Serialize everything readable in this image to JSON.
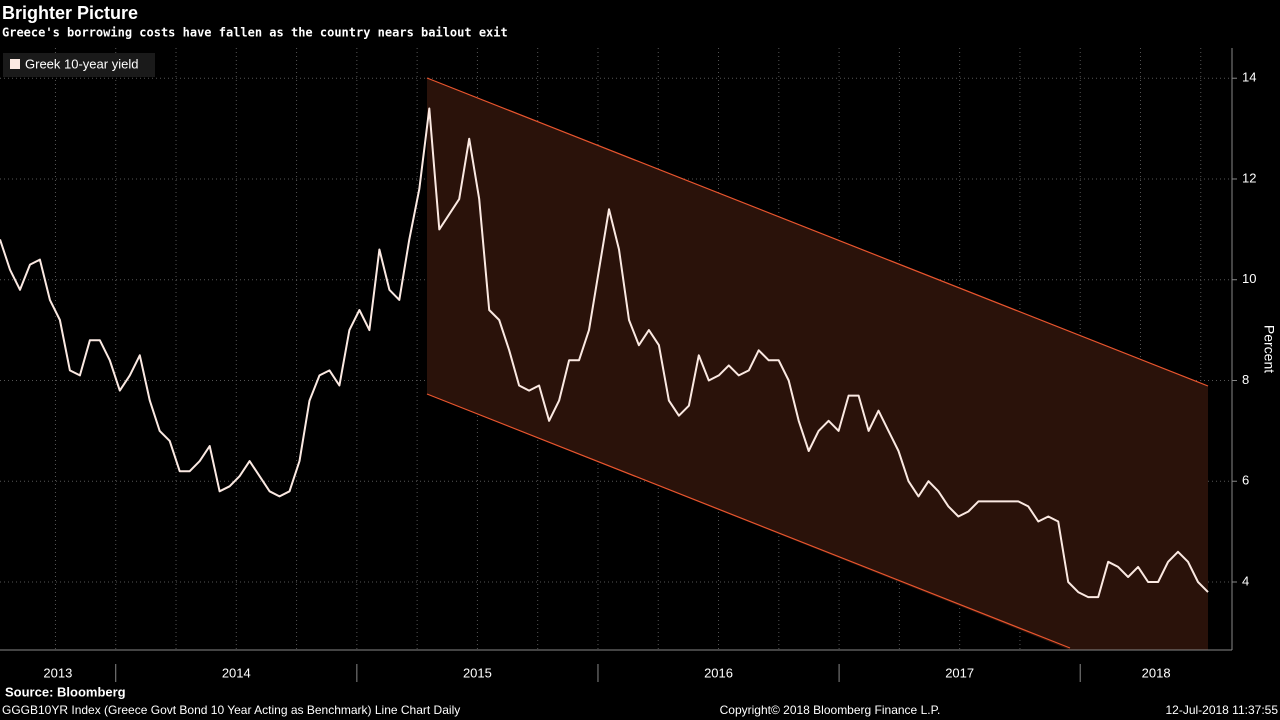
{
  "chart_data": {
    "type": "line",
    "title": "Brighter Picture",
    "subtitle": "Greece's borrowing costs have fallen as the country nears bailout exit",
    "y_label": "Percent",
    "source": "Source: Bloomberg",
    "footer_left": "GGGB10YR Index (Greece Govt Bond 10 Year Acting as Benchmark) Line Chart  Daily",
    "footer_center": "Copyright© 2018 Bloomberg Finance L.P.",
    "footer_right": "12-Jul-2018 11:37:55",
    "year_labels": [
      "2013",
      "2014",
      "2015",
      "2016",
      "2017",
      "2018"
    ],
    "xlim": [
      2013.52,
      2018.53
    ],
    "xticks": [
      2014,
      2015,
      2016,
      2017,
      2018
    ],
    "ylim": [
      2.65,
      14.6
    ],
    "yticks": [
      4,
      6,
      8,
      10,
      12,
      14
    ],
    "grid": true,
    "legend": "top-left",
    "series": [
      {
        "name": "Greek 10-year yield",
        "color": "#fbe9e2",
        "values": [
          10.8,
          10.2,
          9.8,
          10.3,
          10.4,
          9.6,
          9.2,
          8.2,
          8.1,
          8.8,
          8.8,
          8.4,
          7.8,
          8.1,
          8.5,
          7.6,
          7.0,
          6.8,
          6.2,
          6.2,
          6.4,
          6.7,
          5.8,
          5.9,
          6.1,
          6.4,
          6.1,
          5.8,
          5.7,
          5.8,
          6.4,
          7.6,
          8.1,
          8.2,
          7.9,
          9.0,
          9.4,
          9.0,
          10.6,
          9.8,
          9.6,
          10.8,
          11.8,
          13.4,
          11.0,
          11.3,
          11.6,
          12.8,
          11.6,
          9.4,
          9.2,
          8.6,
          7.9,
          7.8,
          7.9,
          7.2,
          7.6,
          8.4,
          8.4,
          9.0,
          10.2,
          11.4,
          10.6,
          9.2,
          8.7,
          9.0,
          8.7,
          7.6,
          7.3,
          7.5,
          8.5,
          8.0,
          8.1,
          8.3,
          8.1,
          8.2,
          8.6,
          8.4,
          8.4,
          8.0,
          7.2,
          6.6,
          7.0,
          7.2,
          7.0,
          7.7,
          7.7,
          7.0,
          7.4,
          7.0,
          6.6,
          6.0,
          5.7,
          6.0,
          5.8,
          5.5,
          5.3,
          5.4,
          5.6,
          5.6,
          5.6,
          5.6,
          5.6,
          5.5,
          5.2,
          5.3,
          5.2,
          4.0,
          3.8,
          3.7,
          3.7,
          4.4,
          4.3,
          4.1,
          4.3,
          4.0,
          4.0,
          4.4,
          4.6,
          4.4,
          4.0,
          3.8
        ]
      }
    ]
  }
}
